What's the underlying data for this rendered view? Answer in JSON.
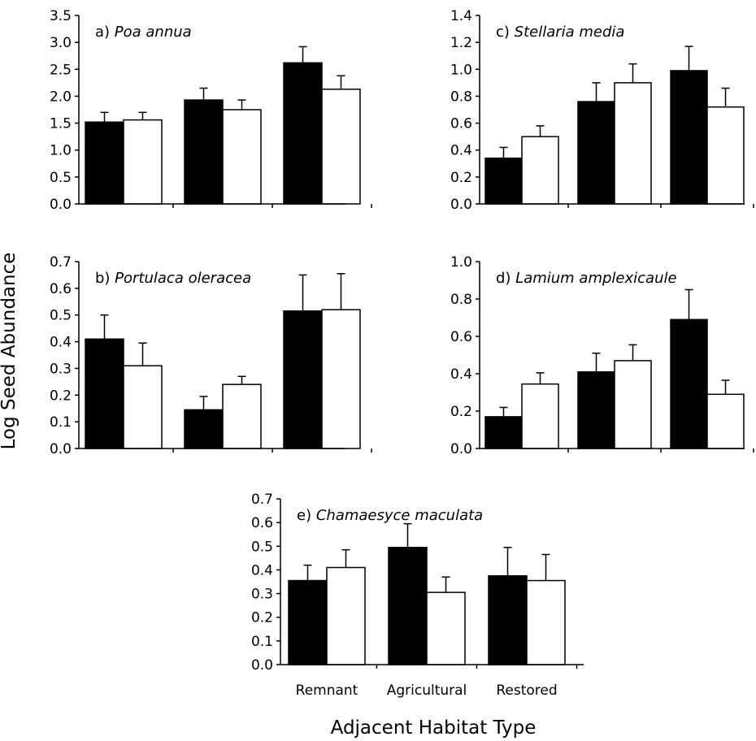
{
  "figure": {
    "ylabel": "Log Seed Abundance",
    "xlabel": "Adjacent Habitat Type",
    "colors": {
      "dark_bar": "#000000",
      "light_bar": "#ffffff",
      "axis": "#000000"
    }
  },
  "chart_data": [
    {
      "id": "a",
      "type": "bar",
      "title_prefix": "a)",
      "title_species": "Poa annua",
      "categories": [
        "Remnant",
        "Agricultural",
        "Restored"
      ],
      "series": [
        {
          "values": [
            1.52,
            1.93,
            2.62
          ],
          "errors": [
            0.18,
            0.22,
            0.3
          ],
          "color": "#000000"
        },
        {
          "values": [
            1.56,
            1.75,
            2.13
          ],
          "errors": [
            0.14,
            0.18,
            0.25
          ],
          "color": "#ffffff"
        }
      ],
      "ylim": [
        0,
        3.5
      ],
      "yticks": [
        "0.0",
        "0.5",
        "1.0",
        "1.5",
        "2.0",
        "2.5",
        "3.0",
        "3.5"
      ],
      "show_category_labels": false
    },
    {
      "id": "c",
      "type": "bar",
      "title_prefix": "c)",
      "title_species": "Stellaria media",
      "categories": [
        "Remnant",
        "Agricultural",
        "Restored"
      ],
      "series": [
        {
          "values": [
            0.34,
            0.76,
            0.99
          ],
          "errors": [
            0.08,
            0.14,
            0.18
          ],
          "color": "#000000"
        },
        {
          "values": [
            0.5,
            0.9,
            0.72
          ],
          "errors": [
            0.08,
            0.14,
            0.14
          ],
          "color": "#ffffff"
        }
      ],
      "ylim": [
        0,
        1.4
      ],
      "yticks": [
        "0.0",
        "0.2",
        "0.4",
        "0.6",
        "0.8",
        "1.0",
        "1.2",
        "1.4"
      ],
      "show_category_labels": false
    },
    {
      "id": "b",
      "type": "bar",
      "title_prefix": "b)",
      "title_species": "Portulaca oleracea",
      "categories": [
        "Remnant",
        "Agricultural",
        "Restored"
      ],
      "series": [
        {
          "values": [
            0.41,
            0.145,
            0.515
          ],
          "errors": [
            0.09,
            0.05,
            0.135
          ],
          "color": "#000000"
        },
        {
          "values": [
            0.31,
            0.24,
            0.52
          ],
          "errors": [
            0.085,
            0.03,
            0.135
          ],
          "color": "#ffffff"
        }
      ],
      "ylim": [
        0,
        0.7
      ],
      "yticks": [
        "0.0",
        "0.1",
        "0.2",
        "0.3",
        "0.4",
        "0.5",
        "0.6",
        "0.7"
      ],
      "show_category_labels": false
    },
    {
      "id": "d",
      "type": "bar",
      "title_prefix": "d)",
      "title_species": "Lamium amplexicaule",
      "categories": [
        "Remnant",
        "Agricultural",
        "Restored"
      ],
      "series": [
        {
          "values": [
            0.17,
            0.41,
            0.69
          ],
          "errors": [
            0.05,
            0.1,
            0.16
          ],
          "color": "#000000"
        },
        {
          "values": [
            0.345,
            0.47,
            0.29
          ],
          "errors": [
            0.06,
            0.085,
            0.075
          ],
          "color": "#ffffff"
        }
      ],
      "ylim": [
        0,
        1.0
      ],
      "yticks": [
        "0.0",
        "0.2",
        "0.4",
        "0.6",
        "0.8",
        "1.0"
      ],
      "show_category_labels": false
    },
    {
      "id": "e",
      "type": "bar",
      "title_prefix": "e)",
      "title_species": "Chamaesyce maculata",
      "categories": [
        "Remnant",
        "Agricultural",
        "Restored"
      ],
      "series": [
        {
          "values": [
            0.355,
            0.495,
            0.375
          ],
          "errors": [
            0.065,
            0.1,
            0.12
          ],
          "color": "#000000"
        },
        {
          "values": [
            0.41,
            0.305,
            0.355
          ],
          "errors": [
            0.075,
            0.065,
            0.11
          ],
          "color": "#ffffff"
        }
      ],
      "ylim": [
        0,
        0.7
      ],
      "yticks": [
        "0.0",
        "0.1",
        "0.2",
        "0.3",
        "0.4",
        "0.5",
        "0.6",
        "0.7"
      ],
      "show_category_labels": true
    }
  ]
}
